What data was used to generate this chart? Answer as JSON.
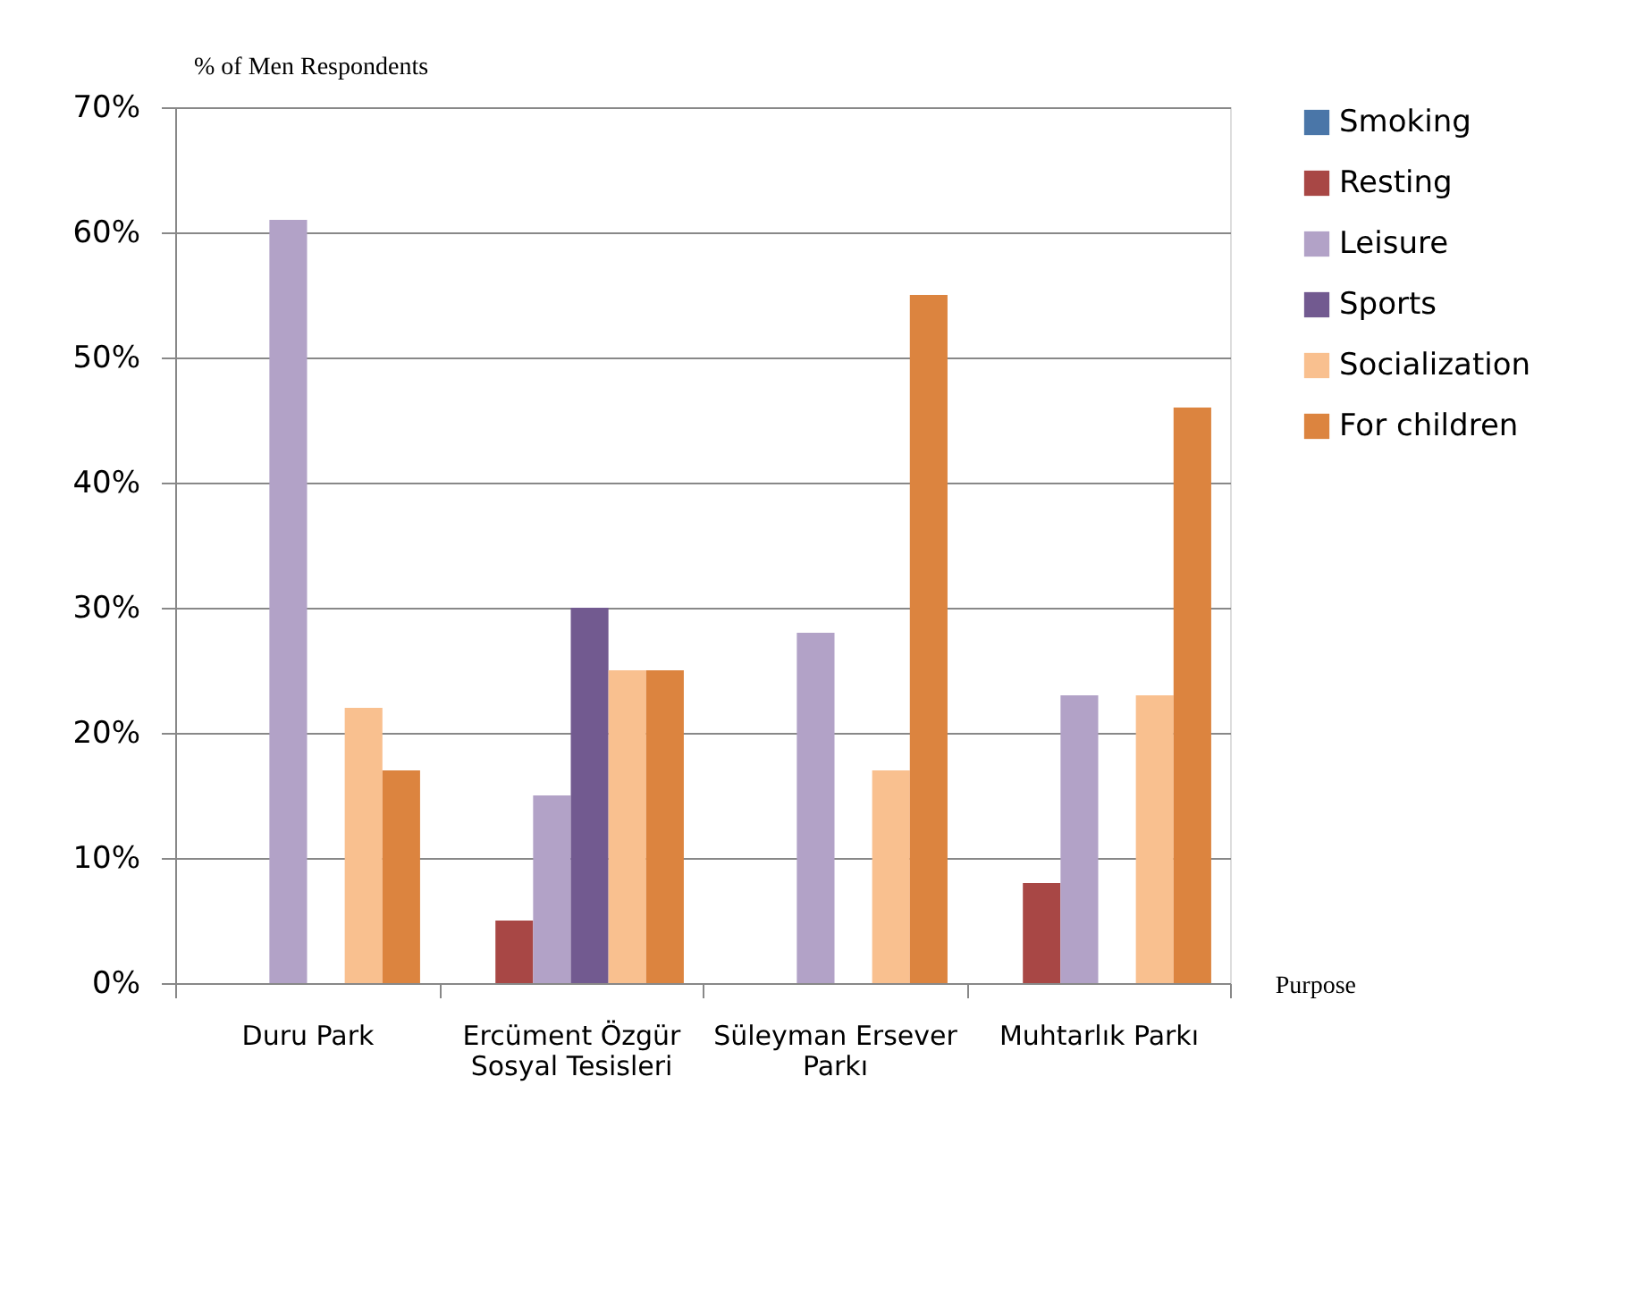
{
  "chart_data": {
    "type": "bar",
    "categories": [
      "Duru Park",
      "Ercüment Özgür Sosyal Tesisleri",
      "Süleyman Ersever Parkı",
      "Muhtarlık Parkı"
    ],
    "series": [
      {
        "name": "Smoking",
        "color": "#4a76a8",
        "values": [
          0,
          0,
          0,
          0
        ]
      },
      {
        "name": "Resting",
        "color": "#a84745",
        "values": [
          0,
          5,
          0,
          8
        ]
      },
      {
        "name": "Leisure",
        "color": "#b2a2c7",
        "values": [
          61,
          15,
          28,
          23
        ]
      },
      {
        "name": "Sports",
        "color": "#725a90",
        "values": [
          0,
          30,
          0,
          0
        ]
      },
      {
        "name": "Socialization",
        "color": "#f9c08f",
        "values": [
          22,
          25,
          17,
          23
        ]
      },
      {
        "name": "For children",
        "color": "#dc843f",
        "values": [
          17,
          25,
          55,
          46
        ]
      }
    ],
    "ylabel": "% of Men Respondents",
    "xlabel": "Purpose",
    "ylim": [
      0,
      70
    ],
    "yticks": [
      {
        "value": 0,
        "label": "0%"
      },
      {
        "value": 10,
        "label": "10%"
      },
      {
        "value": 20,
        "label": "20%"
      },
      {
        "value": 30,
        "label": "30%"
      },
      {
        "value": 40,
        "label": "40%"
      },
      {
        "value": 50,
        "label": "50%"
      },
      {
        "value": 60,
        "label": "60%"
      },
      {
        "value": 70,
        "label": "70%"
      }
    ],
    "grid": "y",
    "legend": "right"
  }
}
